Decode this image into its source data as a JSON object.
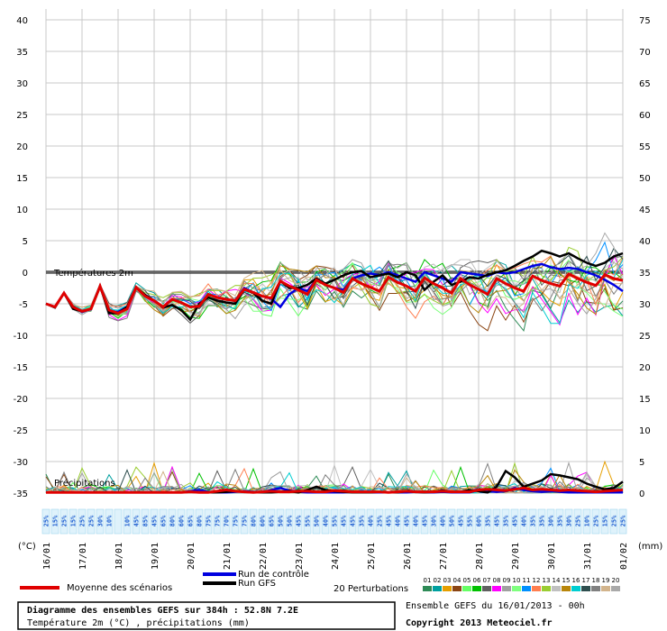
{
  "chart_data": {
    "type": "line",
    "title": "Diagramme des ensembles GEFS sur 384h : 52.8N 7.2E",
    "subtitle": "Température 2m (°C) , précipitations (mm)",
    "left_axis_unit": "(°C)",
    "right_axis_unit": "(mm)",
    "left_ticks": [
      40,
      35,
      30,
      25,
      20,
      15,
      10,
      5,
      0,
      -5,
      -10,
      -15,
      -20,
      -25,
      -30,
      -35
    ],
    "right_ticks": [
      75,
      70,
      65,
      60,
      55,
      50,
      45,
      40,
      35,
      30,
      25,
      20,
      15,
      10,
      5,
      0
    ],
    "ylim_temperature": [
      -35,
      40
    ],
    "ylim_precipitation": [
      0,
      75
    ],
    "x_dates": [
      "16/01",
      "17/01",
      "18/01",
      "19/01",
      "20/01",
      "21/01",
      "22/01",
      "23/01",
      "24/01",
      "25/01",
      "26/01",
      "27/01",
      "28/01",
      "29/01",
      "30/01",
      "31/01",
      "01/02"
    ],
    "x_step_hours": 6,
    "temperature_zero_label": "Températures 2m",
    "precip_section_label": "Précipitations",
    "series": [
      {
        "name": "Moyenne des scénarios",
        "color": "#e00000",
        "temperature": [
          -5,
          -5.5,
          -3.3,
          -5.5,
          -6.2,
          -5.8,
          -2.2,
          -6,
          -6.5,
          -5.8,
          -2.4,
          -3.8,
          -4.5,
          -5.5,
          -4.3,
          -4.8,
          -5.5,
          -5.4,
          -3.5,
          -4,
          -4.3,
          -4.5,
          -2.7,
          -3.2,
          -3.8,
          -4.1,
          -1.4,
          -2.2,
          -2.8,
          -3.5,
          -1.2,
          -2,
          -2.5,
          -3.2,
          -1,
          -1.8,
          -2.4,
          -3,
          -0.8,
          -1.6,
          -2.2,
          -3,
          -0.9,
          -1.8,
          -2.5,
          -3.3,
          -1,
          -2,
          -2.7,
          -3.5,
          -1,
          -1.8,
          -2.5,
          -3,
          -0.6,
          -1.3,
          -1.8,
          -2.2,
          -0.3,
          -1,
          -1.6,
          -2.1,
          -0.4,
          -1,
          -1.3
        ],
        "precip": [
          0.1,
          0.1,
          0.1,
          0.1,
          0.1,
          0.1,
          0.1,
          0.1,
          0.1,
          0.1,
          0.1,
          0.1,
          0.1,
          0.1,
          0.1,
          0.1,
          0.2,
          0.1,
          0.1,
          0.3,
          0.5,
          0.3,
          0.2,
          0.1,
          0.2,
          0.3,
          0.2,
          0.2,
          0.3,
          0.3,
          0.2,
          0.2,
          0.4,
          0.3,
          0.2,
          0.2,
          0.2,
          0.2,
          0.1,
          0.2,
          0.3,
          0.2,
          0.2,
          0.2,
          0.3,
          0.2,
          0.2,
          0.2,
          0.5,
          0.6,
          0.5,
          0.4,
          0.6,
          0.8,
          0.5,
          0.6,
          0.5,
          0.4,
          0.5,
          0.4,
          0.3,
          0.2,
          0.3,
          0.4,
          0.5
        ]
      },
      {
        "name": "Run de contrôle",
        "color": "#0000e0",
        "temperature": [
          -5,
          -5.5,
          -3.3,
          -5.5,
          -6.3,
          -5.8,
          -2.2,
          -6.2,
          -6.3,
          -5.5,
          -2.4,
          -3.6,
          -4.5,
          -5.5,
          -4.3,
          -4.8,
          -5.5,
          -5.4,
          -3.5,
          -4,
          -4.3,
          -4.5,
          -2.5,
          -3.2,
          -3.8,
          -4.2,
          -5.5,
          -3.5,
          -2.5,
          -3,
          -1.2,
          -2,
          -2.5,
          -2.8,
          -1,
          -0.5,
          -0.2,
          -0.5,
          0,
          -0.5,
          -1,
          -1.5,
          0,
          -0.5,
          -1,
          -1.5,
          0,
          -0.2,
          -0.4,
          -0.6,
          0,
          -0.2,
          0,
          0.5,
          1,
          1.3,
          0.8,
          0.5,
          0.7,
          0.5,
          0,
          -0.5,
          -1.2,
          -2,
          -3
        ],
        "precip": [
          0.1,
          0.1,
          0.1,
          0.1,
          0.1,
          0.1,
          0.1,
          0.1,
          0.1,
          0.1,
          0.1,
          0.1,
          0.1,
          0.1,
          0.1,
          0.1,
          0.3,
          0.5,
          0.2,
          0.1,
          0.1,
          0.2,
          0.3,
          0.2,
          0.1,
          0.5,
          0.8,
          0.4,
          0.2,
          0.1,
          0.1,
          0.1,
          0.1,
          0.1,
          0.2,
          0.1,
          0.1,
          0.1,
          0.1,
          0.1,
          0.1,
          0.2,
          0.1,
          0.1,
          0.2,
          0.1,
          0.1,
          0.1,
          0.5,
          0.3,
          0.2,
          0.3,
          0.8,
          0.5,
          0.3,
          0.2,
          0.3,
          0.2,
          0.1,
          0.1,
          0.1,
          0.1,
          0.1,
          0.1,
          0.1
        ]
      },
      {
        "name": "Run GFS",
        "color": "#000000",
        "temperature": [
          -5,
          -5.6,
          -3.3,
          -5.8,
          -6.2,
          -5.8,
          -2.2,
          -6.5,
          -6.5,
          -5.5,
          -2.4,
          -3.6,
          -4.5,
          -5.6,
          -5.2,
          -6,
          -7.5,
          -5,
          -4,
          -4.5,
          -4.8,
          -5,
          -2.7,
          -3.3,
          -4.5,
          -5,
          -1.4,
          -2.5,
          -2.5,
          -2,
          -1,
          -1.8,
          -1.2,
          -0.5,
          0,
          0.2,
          -0.8,
          -0.5,
          -0.2,
          -0.8,
          0,
          -0.5,
          -2.8,
          -1.5,
          -0.5,
          -2,
          -1.5,
          -0.8,
          -1,
          -0.4,
          0,
          0.3,
          1,
          1.8,
          2.5,
          3.4,
          3,
          2.5,
          3,
          2.2,
          1.5,
          1,
          1.5,
          2.5,
          3
        ],
        "precip": [
          0.1,
          0.1,
          0.1,
          0.1,
          0.1,
          0.1,
          0.1,
          0.1,
          0.1,
          0.1,
          0.1,
          0.1,
          0.1,
          0.1,
          0.1,
          0.1,
          0.2,
          0.1,
          0.1,
          0.1,
          0.2,
          0.3,
          0.2,
          0.1,
          0.1,
          0.1,
          0.2,
          0.3,
          0.1,
          0.5,
          1,
          0.5,
          0.3,
          0.2,
          0.1,
          0.1,
          0.1,
          0.2,
          0.1,
          0.1,
          0.3,
          0.2,
          0.1,
          0.2,
          0.4,
          0.2,
          0.2,
          0.5,
          0.3,
          0.1,
          1,
          3.5,
          2.5,
          1,
          1.5,
          2,
          3,
          2.8,
          2.5,
          2.2,
          1.5,
          1,
          0.6,
          0.8,
          1.8
        ]
      }
    ],
    "temperature_envelope": {
      "max": [
        -5,
        -5.4,
        -3.2,
        -4.8,
        -5.2,
        -4.8,
        -1.8,
        -4.5,
        -4.8,
        -4,
        -1.6,
        -2.4,
        -3,
        -3.6,
        -2.5,
        -2.6,
        -3,
        -2.8,
        -1.2,
        -1.5,
        -1,
        -0.5,
        2.2,
        1,
        0.3,
        -0.2,
        1.6,
        0.5,
        0.3,
        0.2,
        1,
        0.8,
        1.2,
        0.5,
        2,
        1.6,
        1.5,
        1,
        1.8,
        1.5,
        1.5,
        1,
        2,
        1.8,
        1.6,
        1.2,
        2,
        2,
        1.8,
        1.5,
        2.5,
        2.8,
        3,
        4,
        4.5,
        5,
        5.5,
        6,
        6.5,
        7,
        7,
        7.5,
        11,
        10,
        8
      ],
      "min": [
        -5,
        -6,
        -3.8,
        -7,
        -7.5,
        -7,
        -3,
        -8.2,
        -8.5,
        -7.5,
        -3.8,
        -6.5,
        -7.5,
        -8.5,
        -6.5,
        -7.5,
        -8.5,
        -8.2,
        -6.5,
        -7.5,
        -8.5,
        -9,
        -6.5,
        -8.5,
        -10,
        -11.2,
        -8.5,
        -10,
        -11.5,
        -12.2,
        -7,
        -9,
        -10,
        -11,
        -6,
        -7.5,
        -9,
        -10,
        -7,
        -8,
        -10,
        -11,
        -7.5,
        -9,
        -10.5,
        -11.5,
        -8.5,
        -10,
        -11.5,
        -12,
        -7,
        -8.5,
        -9.5,
        -10.5,
        -6,
        -7,
        -8.5,
        -9,
        -7,
        -9,
        -10.5,
        -11,
        -9,
        -10,
        -9
      ]
    },
    "perturbation_count_label": "20 Perturbations",
    "perturbation_ids": [
      "01",
      "02",
      "03",
      "04",
      "05",
      "06",
      "07",
      "08",
      "09",
      "10",
      "11",
      "12",
      "13",
      "14",
      "15",
      "16",
      "17",
      "18",
      "19",
      "20"
    ],
    "perturbation_colors": [
      "#2e8b57",
      "#00a0a0",
      "#e69f00",
      "#8b4513",
      "#66ff66",
      "#00c000",
      "#606060",
      "#ff00ff",
      "#a0a0a0",
      "#7fff7f",
      "#0090ff",
      "#ff7f50",
      "#9acd32",
      "#c0c0c0",
      "#b8860b",
      "#00ced1",
      "#2f4f4f",
      "#808080",
      "#d2b48c",
      "#a9a9a9"
    ],
    "precip_probabilities": [
      25,
      15,
      25,
      15,
      25,
      25,
      30,
      10,
      "",
      10,
      45,
      85,
      45,
      65,
      80,
      60,
      65,
      80,
      75,
      75,
      70,
      75,
      75,
      80,
      60,
      65,
      50,
      50,
      45,
      55,
      50,
      40,
      55,
      45,
      45,
      35,
      40,
      25,
      45,
      40,
      45,
      40,
      45,
      30,
      40,
      50,
      45,
      55,
      60,
      35,
      45,
      35,
      45,
      40,
      35,
      35,
      30,
      35,
      30,
      25,
      10,
      25,
      15,
      25,
      25
    ]
  },
  "legend": {
    "mean": "Moyenne des scénarios",
    "control": "Run de contrôle",
    "gfs": "Run GFS",
    "perturbations": "20 Perturbations"
  },
  "footer": {
    "title": "Diagramme des ensembles GEFS sur 384h : 52.8N 7.2E",
    "subtitle": "Température 2m (°C) , précipitations (mm)",
    "run_info": "Ensemble GEFS du 16/01/2013 - 00h",
    "copyright": "Copyright 2013 Meteociel.fr"
  }
}
